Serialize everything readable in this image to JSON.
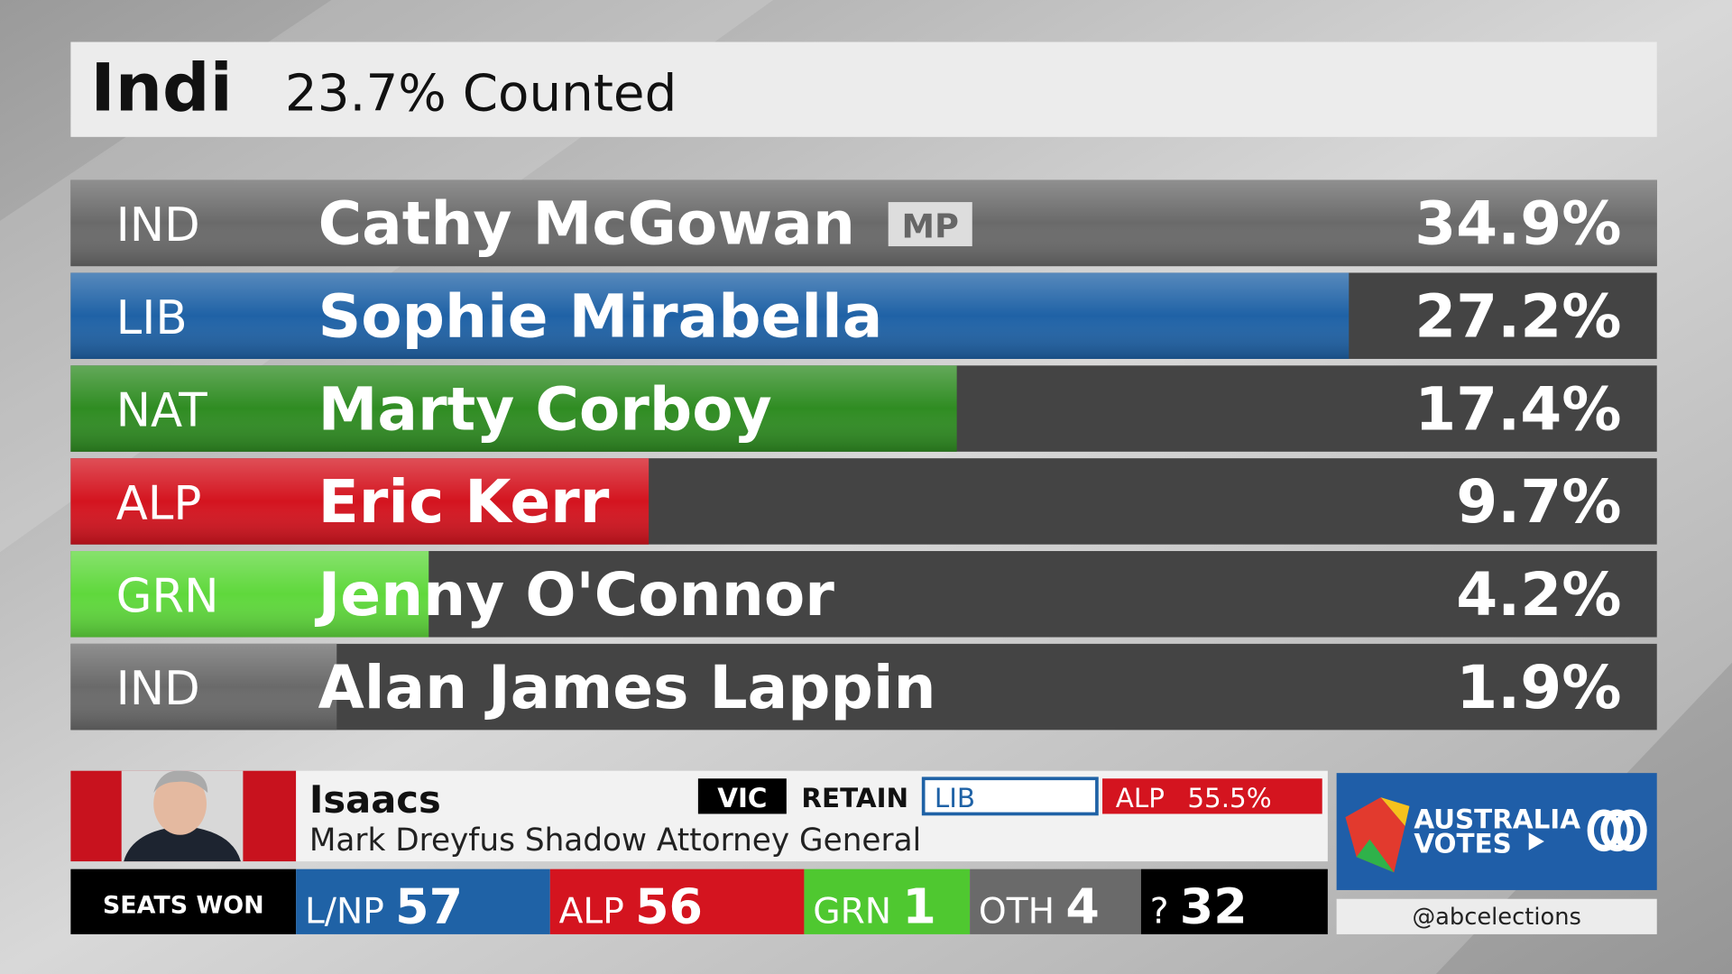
{
  "header": {
    "seat": "Indi",
    "counted": "23.7% Counted"
  },
  "candidates": [
    {
      "party": "IND",
      "name": "Cathy McGowan",
      "badge": "MP",
      "color": "#6a6a6a",
      "value": 34.9,
      "value_label": "34.9%"
    },
    {
      "party": "LIB",
      "name": "Sophie Mirabella",
      "color": "#1f62a6",
      "value": 27.2,
      "value_label": "27.2%"
    },
    {
      "party": "NAT",
      "name": "Marty Corboy",
      "color": "#2f8c22",
      "value": 17.4,
      "value_label": "17.4%"
    },
    {
      "party": "ALP",
      "name": "Eric Kerr",
      "color": "#d4141f",
      "value": 9.7,
      "value_label": "9.7%"
    },
    {
      "party": "GRN",
      "name": "Jenny O'Connor",
      "color": "#5fd83c",
      "value": 4.2,
      "value_label": "4.2%"
    },
    {
      "party": "IND",
      "name": "Alan James Lappin",
      "color": "#6a6a6a",
      "value": 1.9,
      "value_label": "1.9%"
    }
  ],
  "ticker": {
    "seat": "Isaacs",
    "subtitle": "Mark Dreyfus Shadow Attorney General",
    "state": "VIC",
    "status": "RETAIN",
    "party": "LIB",
    "opponent": "ALP",
    "margin": "55.5%"
  },
  "seats": {
    "label": "SEATS WON",
    "groups": [
      {
        "party": "L/NP",
        "count": 57,
        "color": "#1f62a6"
      },
      {
        "party": "ALP",
        "count": 56,
        "color": "#d4141f"
      },
      {
        "party": "GRN",
        "count": 1,
        "color": "#4fc830"
      },
      {
        "party": "OTH",
        "count": 4,
        "color": "#6a6a6a"
      },
      {
        "party": "?",
        "count": 32,
        "color": "#000000"
      }
    ]
  },
  "brand": {
    "line1": "AUSTRALIA",
    "line2": "VOTES",
    "handle": "@abcelections"
  }
}
